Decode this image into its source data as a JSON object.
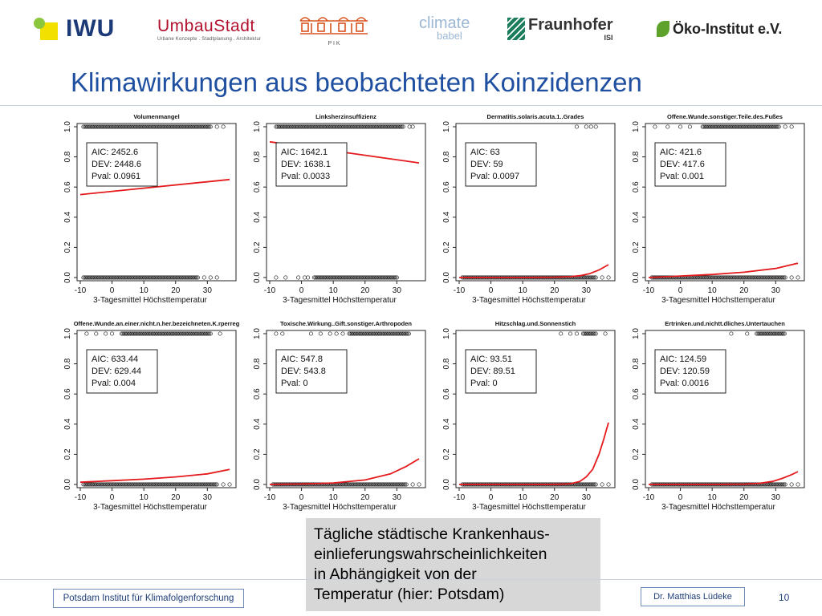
{
  "header": {
    "logos": {
      "iwu": "IWU",
      "umbau_name": "UmbauStadt",
      "umbau_sub": "Urbane Konzepte . Stadtplanung . Architektur",
      "pik": "P I K",
      "climate_top": "climate",
      "climate_bottom": "babel",
      "fraunhofer": "Fraunhofer",
      "fraunhofer_sub": "ISI",
      "oeko": "Öko-Institut e.V."
    },
    "title": "Klimawirkungen aus beobachteten Koinzidenzen"
  },
  "caption": {
    "lines": [
      "Tägliche städtische Krankenhaus-",
      "einlieferungswahrscheinlichkeiten",
      "in Abhängigkeit von der",
      "Temperatur (hier: Potsdam)"
    ]
  },
  "footer": {
    "institute": "Potsdam Institut für Klimafolgenforschung",
    "author": "Dr. Matthias Lüdeke",
    "page": "10"
  },
  "colors": {
    "title": "#1f4fa0",
    "curve": "#e41a1c",
    "caption_bg": "#d7d7d7",
    "footer_text": "#1f3f78"
  },
  "chart_data": [
    {
      "type": "scatter",
      "title": "Volumenmangel",
      "xlabel": "3-Tagesmittel Höchsttemperatur",
      "ylabel": "",
      "xlim": [
        -10,
        38
      ],
      "ylim": [
        0,
        1
      ],
      "xticks": [
        -10,
        0,
        10,
        20,
        30
      ],
      "yticks": [
        0.0,
        0.2,
        0.4,
        0.6,
        0.8,
        1.0
      ],
      "stats": {
        "AIC": "2452.6",
        "DEV": "2448.6",
        "Pval": "0.0961"
      },
      "ones_range": [
        [
          -9,
          31
        ]
      ],
      "ones_extra": [
        33,
        35
      ],
      "zeros_range": [
        [
          -9,
          27
        ]
      ],
      "zeros_extra": [
        29,
        31,
        33
      ],
      "curve": [
        [
          -10,
          0.55
        ],
        [
          37,
          0.65
        ]
      ]
    },
    {
      "type": "scatter",
      "title": "Linksherzinsuffizienz",
      "xlabel": "3-Tagesmittel Höchsttemperatur",
      "ylabel": "",
      "xlim": [
        -10,
        38
      ],
      "ylim": [
        0,
        1
      ],
      "xticks": [
        -10,
        0,
        10,
        20,
        30
      ],
      "yticks": [
        0.0,
        0.2,
        0.4,
        0.6,
        0.8,
        1.0
      ],
      "stats": {
        "AIC": "1642.1",
        "DEV": "1638.1",
        "Pval": "0.0033"
      },
      "ones_range": [
        [
          -8,
          32
        ]
      ],
      "ones_extra": [
        34,
        35
      ],
      "zeros_range": [
        [
          4,
          30
        ]
      ],
      "zeros_extra": [
        -8,
        -5,
        -1,
        1,
        2
      ],
      "curve": [
        [
          -10,
          0.9
        ],
        [
          37,
          0.76
        ]
      ]
    },
    {
      "type": "scatter",
      "title": "Dermatitis.solaris.acuta.1..Grades",
      "xlabel": "3-Tagesmittel Höchsttemperatur",
      "ylabel": "",
      "xlim": [
        -10,
        38
      ],
      "ylim": [
        0,
        1
      ],
      "xticks": [
        -10,
        0,
        10,
        20,
        30
      ],
      "yticks": [
        0.0,
        0.2,
        0.4,
        0.6,
        0.8,
        1.0
      ],
      "stats": {
        "AIC": "63",
        "DEV": "59",
        "Pval": "0.0097"
      },
      "ones_range": [],
      "ones_extra": [
        27,
        30,
        31.5,
        33
      ],
      "zeros_range": [
        [
          -9,
          33
        ]
      ],
      "zeros_extra": [
        35,
        37
      ],
      "curve": [
        [
          -10,
          0.0
        ],
        [
          10,
          0.0
        ],
        [
          20,
          0.002
        ],
        [
          25,
          0.006
        ],
        [
          28,
          0.012
        ],
        [
          31,
          0.025
        ],
        [
          34,
          0.05
        ],
        [
          37,
          0.085
        ]
      ]
    },
    {
      "type": "scatter",
      "title": "Offene.Wunde.sonstiger.Teile.des.Fußes",
      "xlabel": "3-Tagesmittel Höchsttemperatur",
      "ylabel": "",
      "xlim": [
        -10,
        38
      ],
      "ylim": [
        0,
        1
      ],
      "xticks": [
        -10,
        0,
        10,
        20,
        30
      ],
      "yticks": [
        0.0,
        0.2,
        0.4,
        0.6,
        0.8,
        1.0
      ],
      "stats": {
        "AIC": "421.6",
        "DEV": "417.6",
        "Pval": "0.001"
      },
      "ones_range": [
        [
          7,
          31
        ]
      ],
      "ones_extra": [
        -8,
        -4,
        0,
        3,
        33,
        35
      ],
      "zeros_range": [
        [
          -9,
          33
        ]
      ],
      "zeros_extra": [
        35,
        37
      ],
      "curve": [
        [
          -10,
          0.0
        ],
        [
          0,
          0.01
        ],
        [
          10,
          0.02
        ],
        [
          20,
          0.035
        ],
        [
          30,
          0.06
        ],
        [
          37,
          0.095
        ]
      ]
    },
    {
      "type": "scatter",
      "title": "Offene.Wunde.an.einer.nicht.n.her.bezeichneten.K.rperreg",
      "xlabel": "3-Tagesmittel Höchsttemperatur",
      "ylabel": "",
      "xlim": [
        -10,
        38
      ],
      "ylim": [
        0,
        1
      ],
      "xticks": [
        -10,
        0,
        10,
        20,
        30
      ],
      "yticks": [
        0.0,
        0.2,
        0.4,
        0.6,
        0.8,
        1.0
      ],
      "stats": {
        "AIC": "633.44",
        "DEV": "629.44",
        "Pval": "0.004"
      },
      "ones_range": [
        [
          3,
          31
        ]
      ],
      "ones_extra": [
        -8,
        -5,
        -2,
        0,
        34
      ],
      "zeros_range": [
        [
          -9,
          33
        ]
      ],
      "zeros_extra": [
        35,
        37
      ],
      "curve": [
        [
          -10,
          0.015
        ],
        [
          0,
          0.025
        ],
        [
          10,
          0.035
        ],
        [
          20,
          0.05
        ],
        [
          30,
          0.07
        ],
        [
          37,
          0.1
        ]
      ]
    },
    {
      "type": "scatter",
      "title": "Toxische.Wirkung..Gift.sonstiger.Arthropoden",
      "xlabel": "3-Tagesmittel Höchsttemperatur",
      "ylabel": "",
      "xlim": [
        -10,
        38
      ],
      "ylim": [
        0,
        1
      ],
      "xticks": [
        -10,
        0,
        10,
        20,
        30
      ],
      "yticks": [
        0.0,
        0.2,
        0.4,
        0.6,
        0.8,
        1.0
      ],
      "stats": {
        "AIC": "547.8",
        "DEV": "543.8",
        "Pval": "0"
      },
      "ones_range": [
        [
          15,
          34
        ]
      ],
      "ones_extra": [
        -8,
        -6,
        3,
        6,
        9,
        11,
        13
      ],
      "zeros_range": [
        [
          -9,
          33
        ]
      ],
      "zeros_extra": [
        35,
        37
      ],
      "curve": [
        [
          -10,
          0.0
        ],
        [
          0,
          0.003
        ],
        [
          10,
          0.01
        ],
        [
          20,
          0.03
        ],
        [
          28,
          0.07
        ],
        [
          33,
          0.12
        ],
        [
          37,
          0.17
        ]
      ]
    },
    {
      "type": "scatter",
      "title": "Hitzschlag.und.Sonnenstich",
      "xlabel": "3-Tagesmittel Höchsttemperatur",
      "ylabel": "",
      "xlim": [
        -10,
        38
      ],
      "ylim": [
        0,
        1
      ],
      "xticks": [
        -10,
        0,
        10,
        20,
        30
      ],
      "yticks": [
        0.0,
        0.2,
        0.4,
        0.6,
        0.8,
        1.0
      ],
      "stats": {
        "AIC": "93.51",
        "DEV": "89.51",
        "Pval": "0"
      },
      "ones_range": [
        [
          29,
          33
        ]
      ],
      "ones_extra": [
        22,
        25,
        27,
        36
      ],
      "zeros_range": [
        [
          -9,
          33
        ]
      ],
      "zeros_extra": [
        35,
        37
      ],
      "curve": [
        [
          -10,
          0.0
        ],
        [
          20,
          0.0
        ],
        [
          25,
          0.005
        ],
        [
          28,
          0.02
        ],
        [
          30,
          0.05
        ],
        [
          32,
          0.1
        ],
        [
          34,
          0.2
        ],
        [
          35.5,
          0.3
        ],
        [
          37,
          0.41
        ]
      ]
    },
    {
      "type": "scatter",
      "title": "Ertrinken.und.nichtt.dliches.Untertauchen",
      "xlabel": "3-Tagesmittel Höchsttemperatur",
      "ylabel": "",
      "xlim": [
        -10,
        38
      ],
      "ylim": [
        0,
        1
      ],
      "xticks": [
        -10,
        0,
        10,
        20,
        30
      ],
      "yticks": [
        0.0,
        0.2,
        0.4,
        0.6,
        0.8,
        1.0
      ],
      "stats": {
        "AIC": "124.59",
        "DEV": "120.59",
        "Pval": "0.0016"
      },
      "ones_range": [
        [
          24,
          33
        ]
      ],
      "ones_extra": [
        16,
        21
      ],
      "zeros_range": [
        [
          -9,
          33
        ]
      ],
      "zeros_extra": [
        35,
        37
      ],
      "curve": [
        [
          -10,
          0.0
        ],
        [
          10,
          0.0
        ],
        [
          20,
          0.002
        ],
        [
          25,
          0.008
        ],
        [
          29,
          0.02
        ],
        [
          32,
          0.04
        ],
        [
          35,
          0.065
        ],
        [
          37,
          0.085
        ]
      ]
    }
  ]
}
